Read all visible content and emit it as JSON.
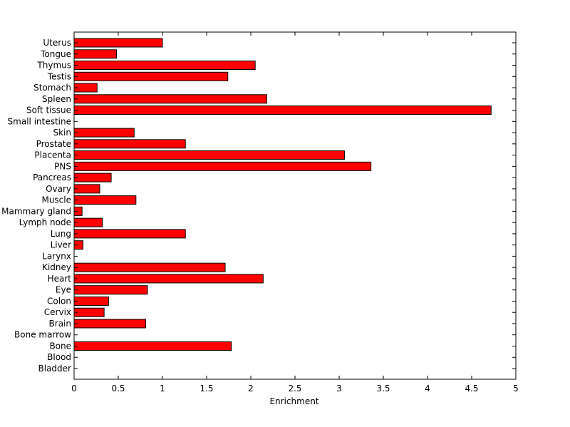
{
  "chart_data": {
    "type": "bar",
    "orientation": "horizontal",
    "title": "",
    "xlabel": "Enrichment",
    "ylabel": "",
    "xlim": [
      0,
      5
    ],
    "xticks": [
      "0",
      "0.5",
      "1",
      "1.5",
      "2",
      "2.5",
      "3",
      "3.5",
      "4",
      "4.5",
      "5"
    ],
    "grid": false,
    "bar_color": "#ff0000",
    "categories": [
      "Bladder",
      "Blood",
      "Bone",
      "Bone marrow",
      "Brain",
      "Cervix",
      "Colon",
      "Eye",
      "Heart",
      "Kidney",
      "Larynx",
      "Liver",
      "Lung",
      "Lymph node",
      "Mammary gland",
      "Muscle",
      "Ovary",
      "Pancreas",
      "PNS",
      "Placenta",
      "Prostate",
      "Skin",
      "Small intestine",
      "Soft tissue",
      "Spleen",
      "Stomach",
      "Testis",
      "Thymus",
      "Tongue",
      "Uterus"
    ],
    "values": [
      0,
      0,
      1.78,
      0,
      0.81,
      0.34,
      0.39,
      0.83,
      2.14,
      1.71,
      0,
      0.1,
      1.26,
      0.32,
      0.09,
      0.7,
      0.29,
      0.42,
      3.36,
      3.06,
      1.26,
      0.68,
      0,
      4.72,
      2.18,
      0.26,
      1.74,
      2.05,
      0.48,
      1.0
    ]
  }
}
